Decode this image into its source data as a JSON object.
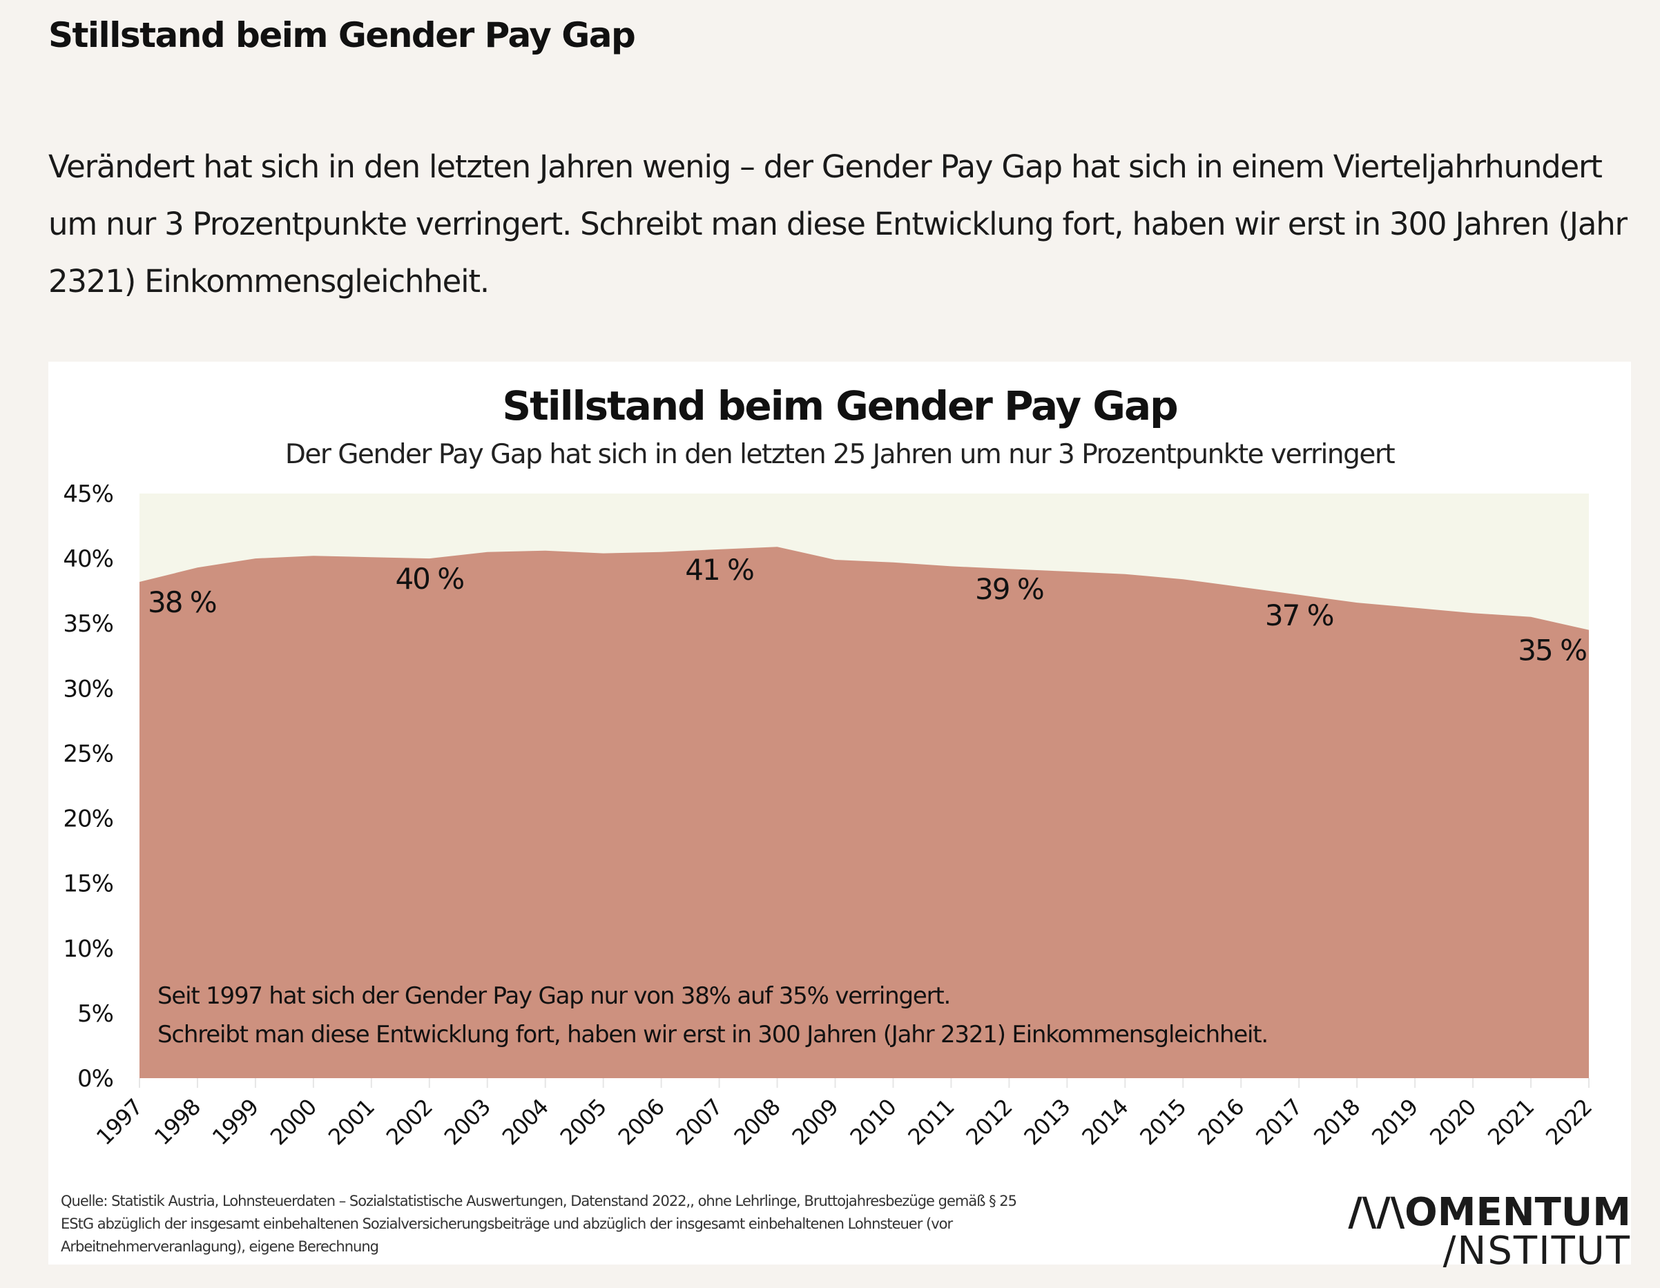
{
  "article": {
    "title": "Stillstand beim Gender Pay Gap",
    "lead": "Verändert hat sich in den letzten Jahren wenig – der Gender Pay Gap hat sich in einem Vierteljahrhundert um nur 3 Prozentpunkte verringert. Schreibt man diese Entwicklung fort, haben wir erst in 300 Jahren (Jahr 2321) Einkommensgleichheit."
  },
  "colors": {
    "page_background": "#f6f3ef",
    "card_background": "#ffffff",
    "plot_background": "#f5f6ea",
    "area_fill": "#cd917f",
    "text": "#111111"
  },
  "chart_data": {
    "type": "area",
    "title": "Stillstand beim Gender Pay Gap",
    "subtitle": "Der Gender Pay Gap hat sich in den letzten 25 Jahren um nur 3 Prozentpunkte verringert",
    "xlabel": "",
    "ylabel": "",
    "x": [
      "1997",
      "1998",
      "1999",
      "2000",
      "2001",
      "2002",
      "2003",
      "2004",
      "2005",
      "2006",
      "2007",
      "2008",
      "2009",
      "2010",
      "2011",
      "2012",
      "2013",
      "2014",
      "2015",
      "2016",
      "2017",
      "2018",
      "2019",
      "2020",
      "2021",
      "2022"
    ],
    "series": [
      {
        "name": "Gender Pay Gap",
        "values": [
          38.2,
          39.3,
          40.0,
          40.2,
          40.1,
          40.0,
          40.5,
          40.6,
          40.4,
          40.5,
          40.7,
          40.9,
          39.9,
          39.7,
          39.4,
          39.2,
          39.0,
          38.8,
          38.4,
          37.8,
          37.2,
          36.6,
          36.2,
          35.8,
          35.5,
          34.5
        ]
      }
    ],
    "ylim": [
      0,
      45
    ],
    "yticks": [
      0,
      5,
      10,
      15,
      20,
      25,
      30,
      35,
      40,
      45
    ],
    "ytick_labels": [
      "0%",
      "5%",
      "10%",
      "15%",
      "20%",
      "25%",
      "30%",
      "35%",
      "40%",
      "45%"
    ],
    "grid": false,
    "legend": "none",
    "data_labels": [
      {
        "x": "1997",
        "text": "38 %"
      },
      {
        "x": "2002",
        "text": "40 %"
      },
      {
        "x": "2007",
        "text": "41 %"
      },
      {
        "x": "2012",
        "text": "39 %"
      },
      {
        "x": "2017",
        "text": "37 %"
      },
      {
        "x": "2022",
        "text": "35 %"
      }
    ],
    "annotations": [
      "Seit 1997 hat sich der Gender Pay Gap nur von 38% auf 35% verringert.",
      "Schreibt man diese Entwicklung fort, haben wir erst in 300 Jahren (Jahr 2321) Einkommensgleichheit."
    ]
  },
  "source": "Quelle: Statistik Austria, Lohnsteuerdaten – Sozialstatistische Auswertungen, Datenstand 2022,, ohne Lehrlinge, Bruttojahresbezüge gemäß § 25 EStG abzüglich der insgesamt einbehaltenen Sozialversicherungsbeiträge und abzüglich der insgesamt einbehaltenen Lohnsteuer (vor Arbeitnehmerveranlagung), eigene Berechnung",
  "logo": {
    "line1": "/\\/\\OMENTUM",
    "line2": "/NSTITUT"
  }
}
